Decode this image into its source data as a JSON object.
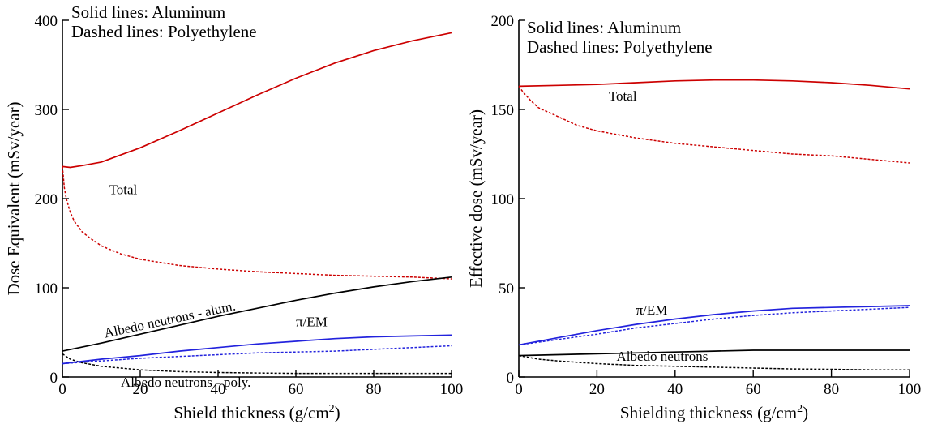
{
  "chart_data": [
    {
      "type": "line",
      "xlabel": "Shield thickness (g/cm",
      "xlabel_sup": "2",
      "xlabel_close": ")",
      "ylabel": "Dose Equivalent (mSv/year)",
      "xlim": [
        0,
        100
      ],
      "ylim": [
        0,
        400
      ],
      "xticks": [
        0,
        20,
        40,
        60,
        80,
        100
      ],
      "yticks": [
        0,
        100,
        200,
        300,
        400
      ],
      "grid": false,
      "legend_text": [
        "Solid lines: Aluminum",
        "Dashed lines: Polyethylene"
      ],
      "annotations": [
        {
          "text": "Total",
          "x": 12,
          "y": 205,
          "anchor": "start",
          "rotate": 0
        },
        {
          "text": "Albedo neutrons - alum.",
          "x": 11,
          "y": 44,
          "anchor": "start",
          "rotate": -12
        },
        {
          "text": "π/EM",
          "x": 60,
          "y": 57,
          "anchor": "start",
          "rotate": 0
        },
        {
          "text": "Albedo neutrons - poly.",
          "x": 15,
          "y": -11,
          "anchor": "start",
          "rotate": 0
        }
      ],
      "series": [
        {
          "color": "#cc0000",
          "dash": "solid",
          "x": [
            0,
            2,
            5,
            10,
            15,
            20,
            30,
            40,
            50,
            60,
            70,
            80,
            90,
            100
          ],
          "y": [
            236,
            235,
            237,
            241,
            249,
            257,
            276,
            296,
            316,
            335,
            352,
            366,
            377,
            386
          ]
        },
        {
          "color": "#cc0000",
          "dash": "dot",
          "x": [
            0,
            0.5,
            1,
            2,
            3,
            5,
            7,
            10,
            15,
            20,
            30,
            40,
            50,
            60,
            70,
            80,
            90,
            100
          ],
          "y": [
            236,
            212,
            200,
            185,
            175,
            163,
            156,
            147,
            138,
            132,
            125,
            121,
            118,
            116,
            114,
            113,
            112,
            110
          ]
        },
        {
          "color": "#000000",
          "dash": "solid",
          "x": [
            0,
            10,
            20,
            30,
            40,
            50,
            60,
            70,
            80,
            90,
            100
          ],
          "y": [
            29,
            38,
            48,
            58,
            68,
            77,
            86,
            94,
            101,
            107,
            112
          ]
        },
        {
          "color": "#000000",
          "dash": "dot",
          "x": [
            0,
            2,
            5,
            10,
            20,
            30,
            40,
            50,
            60,
            70,
            80,
            90,
            100
          ],
          "y": [
            26,
            20,
            16,
            12,
            8,
            6,
            5,
            4.5,
            4,
            4,
            4,
            4,
            4
          ]
        },
        {
          "color": "#2222dd",
          "dash": "solid",
          "x": [
            0,
            10,
            20,
            30,
            40,
            50,
            60,
            70,
            80,
            90,
            100
          ],
          "y": [
            15,
            20,
            24,
            29,
            33,
            37,
            40,
            43,
            45,
            46,
            47
          ]
        },
        {
          "color": "#2222dd",
          "dash": "dot",
          "x": [
            0,
            10,
            20,
            30,
            40,
            50,
            60,
            70,
            80,
            90,
            100
          ],
          "y": [
            15,
            18,
            21,
            23,
            25,
            27,
            28,
            29,
            31,
            33,
            35
          ]
        }
      ]
    },
    {
      "type": "line",
      "xlabel": "Shielding thickness (g/cm",
      "xlabel_sup": "2",
      "xlabel_close": ")",
      "ylabel": "Effective dose (mSv/year)",
      "xlim": [
        0,
        100
      ],
      "ylim": [
        0,
        200
      ],
      "xticks": [
        0,
        20,
        40,
        60,
        80,
        100
      ],
      "yticks": [
        0,
        50,
        100,
        150,
        200
      ],
      "grid": false,
      "legend_text": [
        "Solid lines: Aluminum",
        "Dashed lines: Polyethylene"
      ],
      "annotations": [
        {
          "text": "Total",
          "x": 23,
          "y": 155,
          "anchor": "start",
          "rotate": 0
        },
        {
          "text": "π/EM",
          "x": 30,
          "y": 35,
          "anchor": "start",
          "rotate": 0
        },
        {
          "text": "Albedo neutrons",
          "x": 25,
          "y": 9,
          "anchor": "start",
          "rotate": 0
        }
      ],
      "series": [
        {
          "color": "#cc0000",
          "dash": "solid",
          "x": [
            0,
            10,
            20,
            30,
            40,
            50,
            60,
            70,
            80,
            90,
            100
          ],
          "y": [
            163,
            163.5,
            164,
            165,
            166,
            166.5,
            166.5,
            166,
            165,
            163.5,
            161.5
          ]
        },
        {
          "color": "#cc0000",
          "dash": "dot",
          "x": [
            0,
            1,
            3,
            5,
            10,
            15,
            20,
            30,
            40,
            50,
            60,
            70,
            80,
            90,
            100
          ],
          "y": [
            163,
            160,
            155,
            151,
            146,
            141,
            138,
            134,
            131,
            129,
            127,
            125,
            124,
            122,
            120
          ]
        },
        {
          "color": "#000000",
          "dash": "solid",
          "x": [
            0,
            10,
            20,
            30,
            40,
            50,
            60,
            70,
            80,
            90,
            100
          ],
          "y": [
            12,
            12.5,
            13,
            13.5,
            14,
            14.5,
            15,
            15,
            15,
            15,
            15
          ]
        },
        {
          "color": "#000000",
          "dash": "dot",
          "x": [
            0,
            5,
            10,
            20,
            30,
            40,
            50,
            60,
            70,
            80,
            90,
            100
          ],
          "y": [
            12,
            10,
            9,
            7.5,
            6.5,
            6,
            5.5,
            5,
            4.5,
            4.3,
            4,
            4
          ]
        },
        {
          "color": "#2222dd",
          "dash": "solid",
          "x": [
            0,
            10,
            20,
            30,
            40,
            50,
            60,
            70,
            80,
            90,
            100
          ],
          "y": [
            18,
            22,
            26,
            29.5,
            32.5,
            35,
            37,
            38.5,
            39,
            39.5,
            40
          ]
        },
        {
          "color": "#2222dd",
          "dash": "dot",
          "x": [
            0,
            10,
            20,
            30,
            40,
            50,
            60,
            70,
            80,
            90,
            100
          ],
          "y": [
            18,
            21,
            24,
            27.5,
            30,
            32.5,
            34.5,
            36,
            37,
            38,
            39
          ]
        }
      ]
    }
  ]
}
